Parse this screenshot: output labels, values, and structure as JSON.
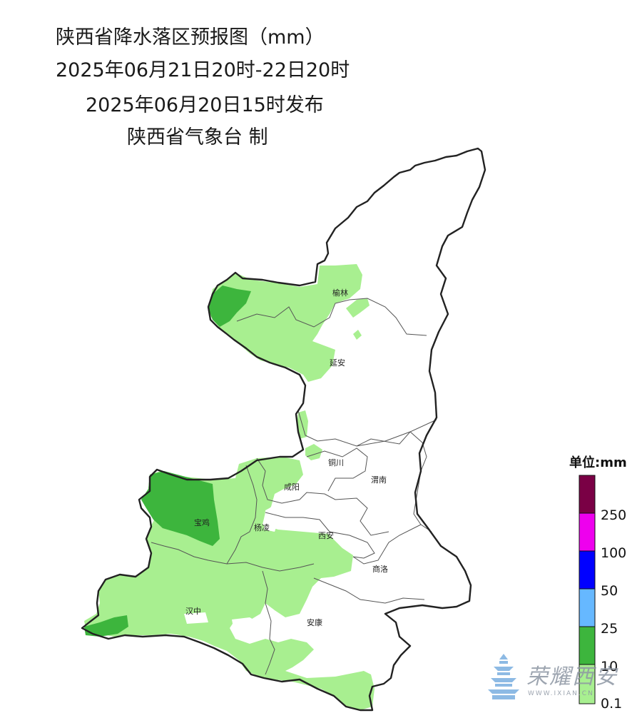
{
  "header": {
    "title": "陕西省降水落区预报图（mm）",
    "period": "2025年06月21日20时-22日20时",
    "issued": "2025年06月20日15时发布",
    "producer": "陕西省气象台 制"
  },
  "legend": {
    "unit_label": "单位:mm",
    "classes": [
      {
        "label": "",
        "color": "#7a0045"
      },
      {
        "label": "250",
        "color": "#ee00ee"
      },
      {
        "label": "100",
        "color": "#0000ff"
      },
      {
        "label": "50",
        "color": "#66b8ff"
      },
      {
        "label": "25",
        "color": "#3db53d"
      },
      {
        "label": "10",
        "color": "#a8ef90"
      },
      {
        "label": "0.1",
        "color": "#ffffff"
      }
    ]
  },
  "cities": [
    {
      "name": "榆林"
    },
    {
      "name": "延安"
    },
    {
      "name": "铜川"
    },
    {
      "name": "渭南"
    },
    {
      "name": "咸阳"
    },
    {
      "name": "宝鸡"
    },
    {
      "name": "杨凌"
    },
    {
      "name": "西安"
    },
    {
      "name": "商洛"
    },
    {
      "name": "汉中"
    },
    {
      "name": "安康"
    }
  ],
  "watermark": {
    "text": "荣耀西安",
    "sub": "WWW.IXIAN.CN"
  },
  "colors": {
    "light_rain": "#a8ef90",
    "moderate_rain": "#3db53d",
    "border": "#222222",
    "city_border": "#555555"
  }
}
